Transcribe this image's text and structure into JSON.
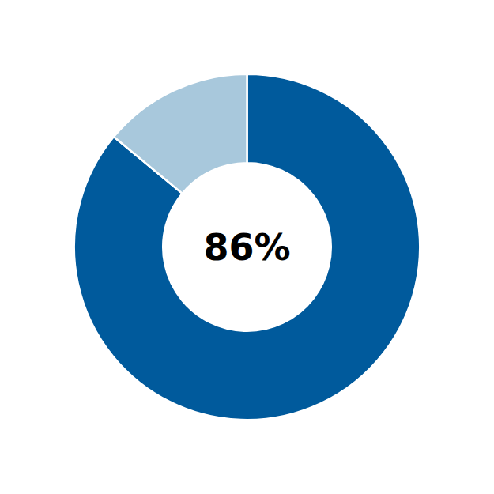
{
  "chart_data": {
    "type": "donut",
    "values": [
      86,
      14
    ],
    "colors": [
      "#005a9c",
      "#a8c8dc"
    ],
    "annotations": [
      "86%"
    ]
  }
}
